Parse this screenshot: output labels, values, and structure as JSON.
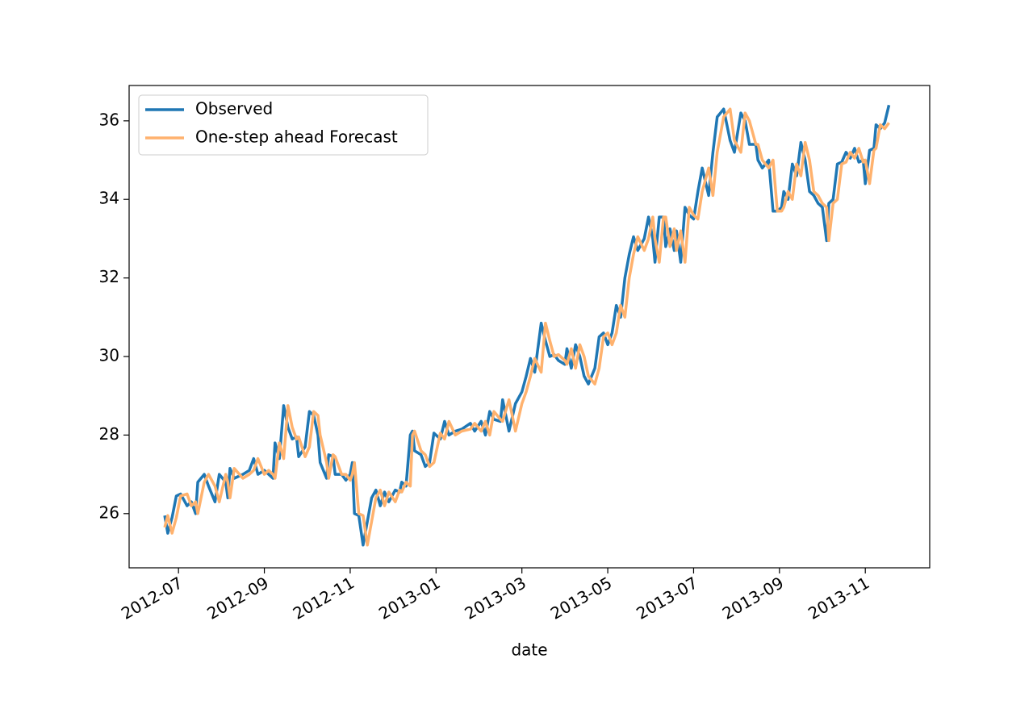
{
  "chart_data": {
    "type": "line",
    "x_label": "date",
    "x": [
      6.68,
      6.75,
      6.85,
      6.95,
      7.05,
      7.2,
      7.3,
      7.4,
      7.45,
      7.6,
      7.7,
      7.85,
      7.95,
      8.1,
      8.15,
      8.2,
      8.3,
      8.5,
      8.65,
      8.75,
      8.85,
      9.0,
      9.1,
      9.2,
      9.25,
      9.35,
      9.45,
      9.55,
      9.65,
      9.75,
      9.8,
      9.95,
      10.05,
      10.15,
      10.25,
      10.3,
      10.45,
      10.5,
      10.6,
      10.65,
      10.8,
      10.9,
      11.0,
      11.05,
      11.1,
      11.2,
      11.3,
      11.4,
      11.5,
      11.6,
      11.7,
      11.8,
      11.9,
      12.05,
      12.15,
      12.2,
      12.3,
      12.4,
      12.45,
      12.5,
      12.65,
      12.75,
      12.85,
      12.95,
      13.1,
      13.2,
      13.3,
      13.45,
      13.6,
      13.8,
      13.9,
      14.05,
      14.15,
      14.25,
      14.35,
      14.5,
      14.55,
      14.7,
      14.85,
      15.0,
      15.1,
      15.2,
      15.3,
      15.45,
      15.55,
      15.65,
      15.75,
      15.85,
      16.0,
      16.05,
      16.15,
      16.25,
      16.35,
      16.45,
      16.55,
      16.7,
      16.8,
      16.9,
      17.0,
      17.1,
      17.2,
      17.3,
      17.4,
      17.5,
      17.6,
      17.7,
      17.85,
      17.95,
      18.05,
      18.1,
      18.2,
      18.3,
      18.35,
      18.45,
      18.55,
      18.6,
      18.7,
      18.8,
      18.9,
      19.0,
      19.1,
      19.2,
      19.35,
      19.45,
      19.55,
      19.7,
      19.85,
      19.95,
      20.1,
      20.2,
      20.3,
      20.45,
      20.5,
      20.6,
      20.75,
      20.85,
      20.95,
      21.05,
      21.1,
      21.2,
      21.3,
      21.4,
      21.5,
      21.6,
      21.7,
      21.8,
      21.9,
      22.0,
      22.1,
      22.15,
      22.25,
      22.35,
      22.45,
      22.55,
      22.65,
      22.75,
      22.85,
      22.95,
      23.0,
      23.1,
      23.2,
      23.25,
      23.35,
      23.45,
      23.55
    ],
    "series": [
      {
        "name": "Observed",
        "color": "#1f77b4",
        "values": [
          25.95,
          25.5,
          25.9,
          26.45,
          26.5,
          26.2,
          26.3,
          26.0,
          26.8,
          27.0,
          26.7,
          26.3,
          27.0,
          26.8,
          26.4,
          27.15,
          26.9,
          27.0,
          27.1,
          27.4,
          27.0,
          27.1,
          27.0,
          26.9,
          27.8,
          27.4,
          28.75,
          28.2,
          27.9,
          27.95,
          27.45,
          27.7,
          28.6,
          28.5,
          28.0,
          27.3,
          26.9,
          27.5,
          27.45,
          27.0,
          27.0,
          26.85,
          27.0,
          27.3,
          26.0,
          25.95,
          25.2,
          25.8,
          26.4,
          26.6,
          26.2,
          26.55,
          26.3,
          26.6,
          26.55,
          26.8,
          26.7,
          28.0,
          28.1,
          27.6,
          27.5,
          27.2,
          27.3,
          28.05,
          27.9,
          28.35,
          28.0,
          28.1,
          28.15,
          28.3,
          28.1,
          28.35,
          28.0,
          28.6,
          28.4,
          28.35,
          28.9,
          28.1,
          28.8,
          29.1,
          29.5,
          29.95,
          29.6,
          30.85,
          30.4,
          30.0,
          30.05,
          29.9,
          29.8,
          30.2,
          29.7,
          30.3,
          30.0,
          29.5,
          29.3,
          29.7,
          30.5,
          30.6,
          30.3,
          30.6,
          31.3,
          31.0,
          32.0,
          32.6,
          33.05,
          32.7,
          33.0,
          33.55,
          33.0,
          32.4,
          33.55,
          33.55,
          32.8,
          33.25,
          32.7,
          33.2,
          32.4,
          33.8,
          33.6,
          33.5,
          34.2,
          34.8,
          34.1,
          35.2,
          36.1,
          36.3,
          35.5,
          35.2,
          36.2,
          36.0,
          35.4,
          35.4,
          35.0,
          34.8,
          35.0,
          33.7,
          33.7,
          33.8,
          34.2,
          34.0,
          34.9,
          34.6,
          35.45,
          35.0,
          34.2,
          34.1,
          33.9,
          33.8,
          32.95,
          33.9,
          34.0,
          34.9,
          34.95,
          35.2,
          35.05,
          35.3,
          34.95,
          35.0,
          34.4,
          35.25,
          35.3,
          35.9,
          35.8,
          35.95,
          36.4
        ]
      },
      {
        "name": "One-step ahead Forecast",
        "color": "#ffb26e",
        "values": [
          25.65,
          25.95,
          25.5,
          25.9,
          26.45,
          26.5,
          26.2,
          26.3,
          26.0,
          26.8,
          27.0,
          26.7,
          26.3,
          27.0,
          26.8,
          26.4,
          27.15,
          26.9,
          27.0,
          27.1,
          27.4,
          27.0,
          27.1,
          27.0,
          26.9,
          27.8,
          27.4,
          28.75,
          28.2,
          27.9,
          27.95,
          27.45,
          27.7,
          28.6,
          28.5,
          28.0,
          27.3,
          26.9,
          27.5,
          27.45,
          27.0,
          27.0,
          26.85,
          27.0,
          27.3,
          26.0,
          25.95,
          25.2,
          25.8,
          26.4,
          26.6,
          26.2,
          26.55,
          26.3,
          26.6,
          26.55,
          26.8,
          26.7,
          28.0,
          28.1,
          27.6,
          27.5,
          27.2,
          27.3,
          28.05,
          27.9,
          28.35,
          28.0,
          28.1,
          28.15,
          28.3,
          28.1,
          28.35,
          28.0,
          28.6,
          28.4,
          28.35,
          28.9,
          28.1,
          28.8,
          29.1,
          29.5,
          29.95,
          29.6,
          30.85,
          30.4,
          30.0,
          30.05,
          29.9,
          29.8,
          30.2,
          29.7,
          30.3,
          30.0,
          29.5,
          29.3,
          29.7,
          30.5,
          30.6,
          30.3,
          30.6,
          31.3,
          31.0,
          32.0,
          32.6,
          33.05,
          32.7,
          33.0,
          33.55,
          33.0,
          32.4,
          33.55,
          33.55,
          32.8,
          33.25,
          32.7,
          33.2,
          32.4,
          33.8,
          33.6,
          33.5,
          34.2,
          34.8,
          34.1,
          35.2,
          36.1,
          36.3,
          35.5,
          35.2,
          36.2,
          36.0,
          35.4,
          35.4,
          35.0,
          34.8,
          35.0,
          33.7,
          33.7,
          33.8,
          34.2,
          34.0,
          34.9,
          34.6,
          35.45,
          35.0,
          34.2,
          34.1,
          33.9,
          33.8,
          32.95,
          33.9,
          34.0,
          34.9,
          34.95,
          35.2,
          35.05,
          35.3,
          34.95,
          35.0,
          34.4,
          35.25,
          35.3,
          35.9,
          35.8,
          35.95
        ]
      }
    ],
    "xlim": [
      5.85,
      24.5
    ],
    "xticks": [
      {
        "value": 7,
        "label": "2012-07"
      },
      {
        "value": 9,
        "label": "2012-09"
      },
      {
        "value": 11,
        "label": "2012-11"
      },
      {
        "value": 13,
        "label": "2013-01"
      },
      {
        "value": 15,
        "label": "2013-03"
      },
      {
        "value": 17,
        "label": "2013-05"
      },
      {
        "value": 19,
        "label": "2013-07"
      },
      {
        "value": 21,
        "label": "2013-09"
      },
      {
        "value": 23,
        "label": "2013-11"
      }
    ],
    "ylim": [
      24.62,
      36.9
    ],
    "yticks": [
      26,
      28,
      30,
      32,
      34,
      36
    ],
    "grid": false,
    "legend": "upper-left"
  }
}
